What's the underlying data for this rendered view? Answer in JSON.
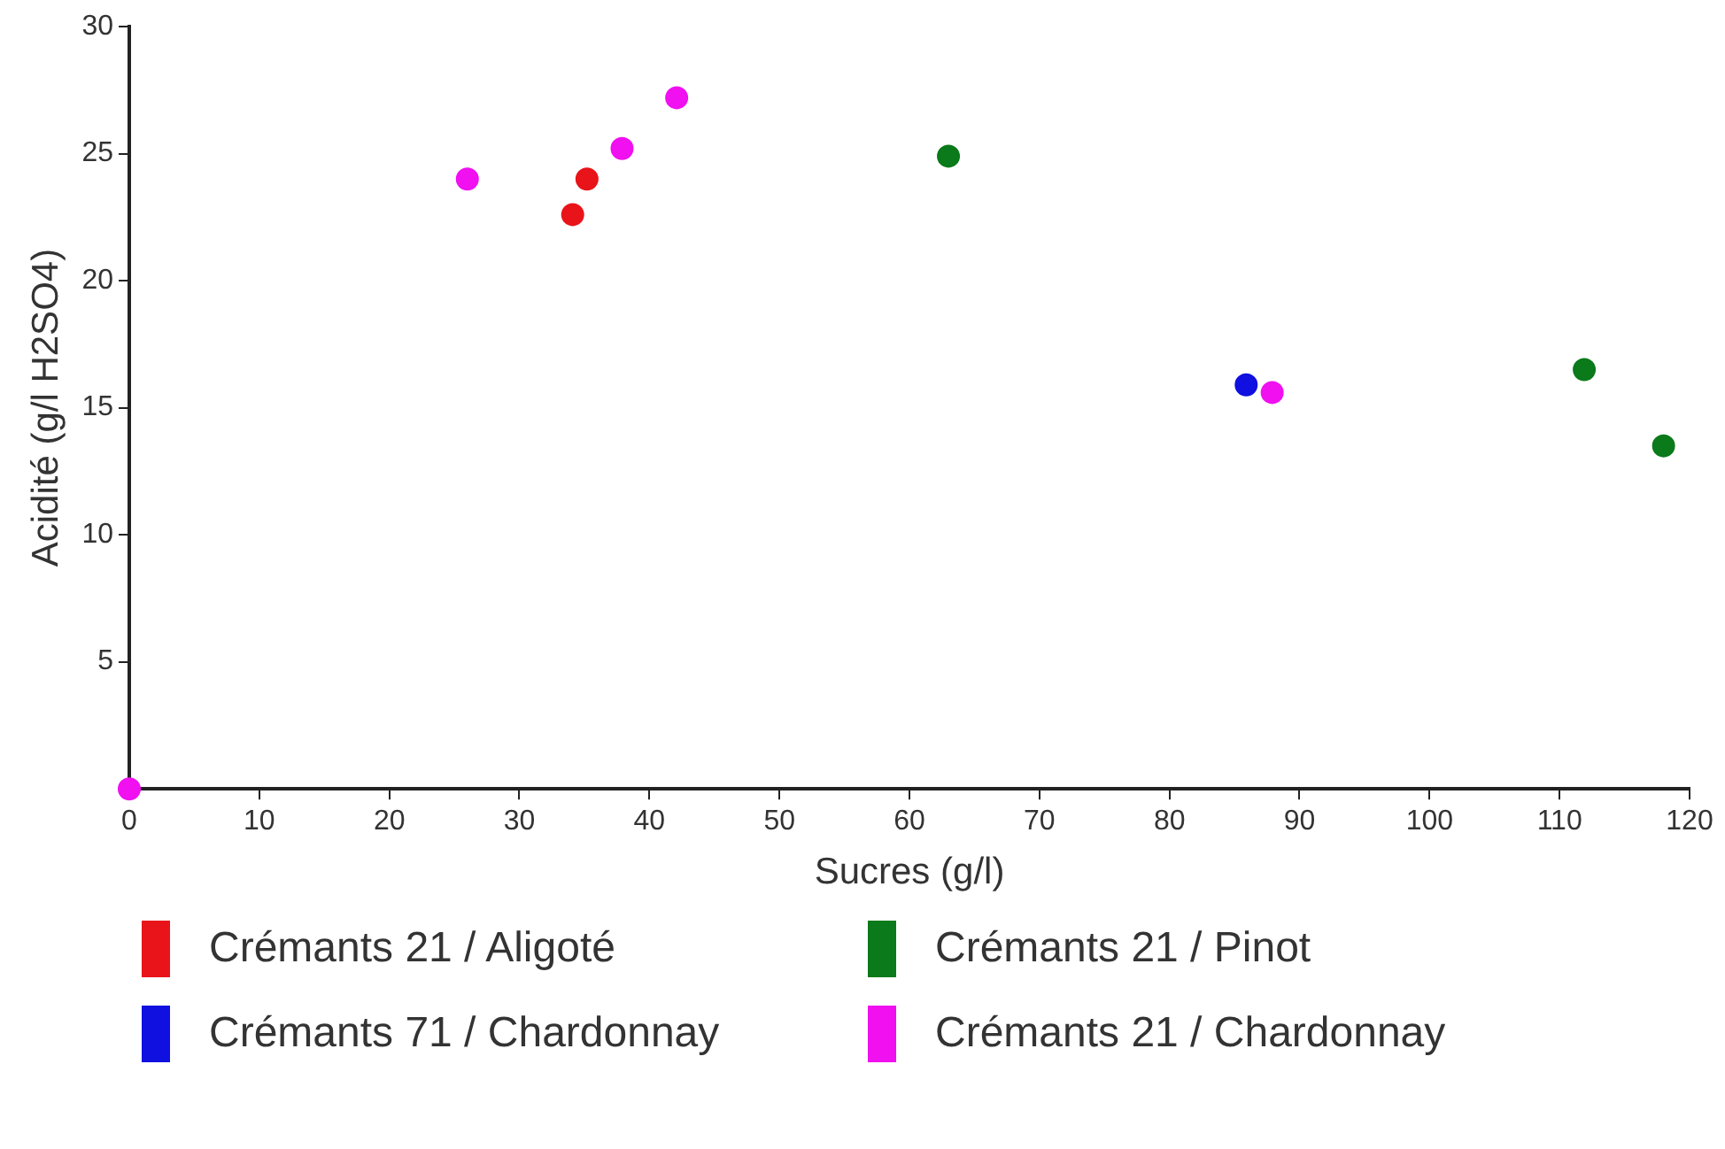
{
  "chart_data": {
    "type": "scatter",
    "xlabel": "Sucres (g/l)",
    "ylabel": "Acidité (g/l H2SO4)",
    "xlim": [
      0,
      120
    ],
    "xticks": [
      0,
      10,
      20,
      30,
      40,
      50,
      60,
      70,
      80,
      90,
      100,
      110,
      120
    ],
    "ylim": [
      0,
      30
    ],
    "yticks": [
      5,
      10,
      15,
      20,
      25,
      30
    ],
    "grid": false,
    "legend": "bottom",
    "marker": "circle",
    "series": [
      {
        "name": "Crémants 21 / Aligoté",
        "color": "#e8141a",
        "x": [
          34.1,
          35.2
        ],
        "values": [
          22.6,
          24.0
        ]
      },
      {
        "name": "Crémants 21 / Pinot",
        "color": "#0a7a1a",
        "x": [
          63.0,
          111.9,
          118.0
        ],
        "values": [
          24.9,
          16.5,
          13.5
        ]
      },
      {
        "name": "Crémants 71 / Chardonnay",
        "color": "#1010e0",
        "x": [
          85.9
        ],
        "values": [
          15.9
        ]
      },
      {
        "name": "Crémants 21 / Chardonnay",
        "color": "#f010f0",
        "x": [
          0,
          26.0,
          37.9,
          42.1,
          87.9
        ],
        "values": [
          0,
          24.0,
          25.2,
          27.2,
          15.6
        ]
      }
    ]
  }
}
